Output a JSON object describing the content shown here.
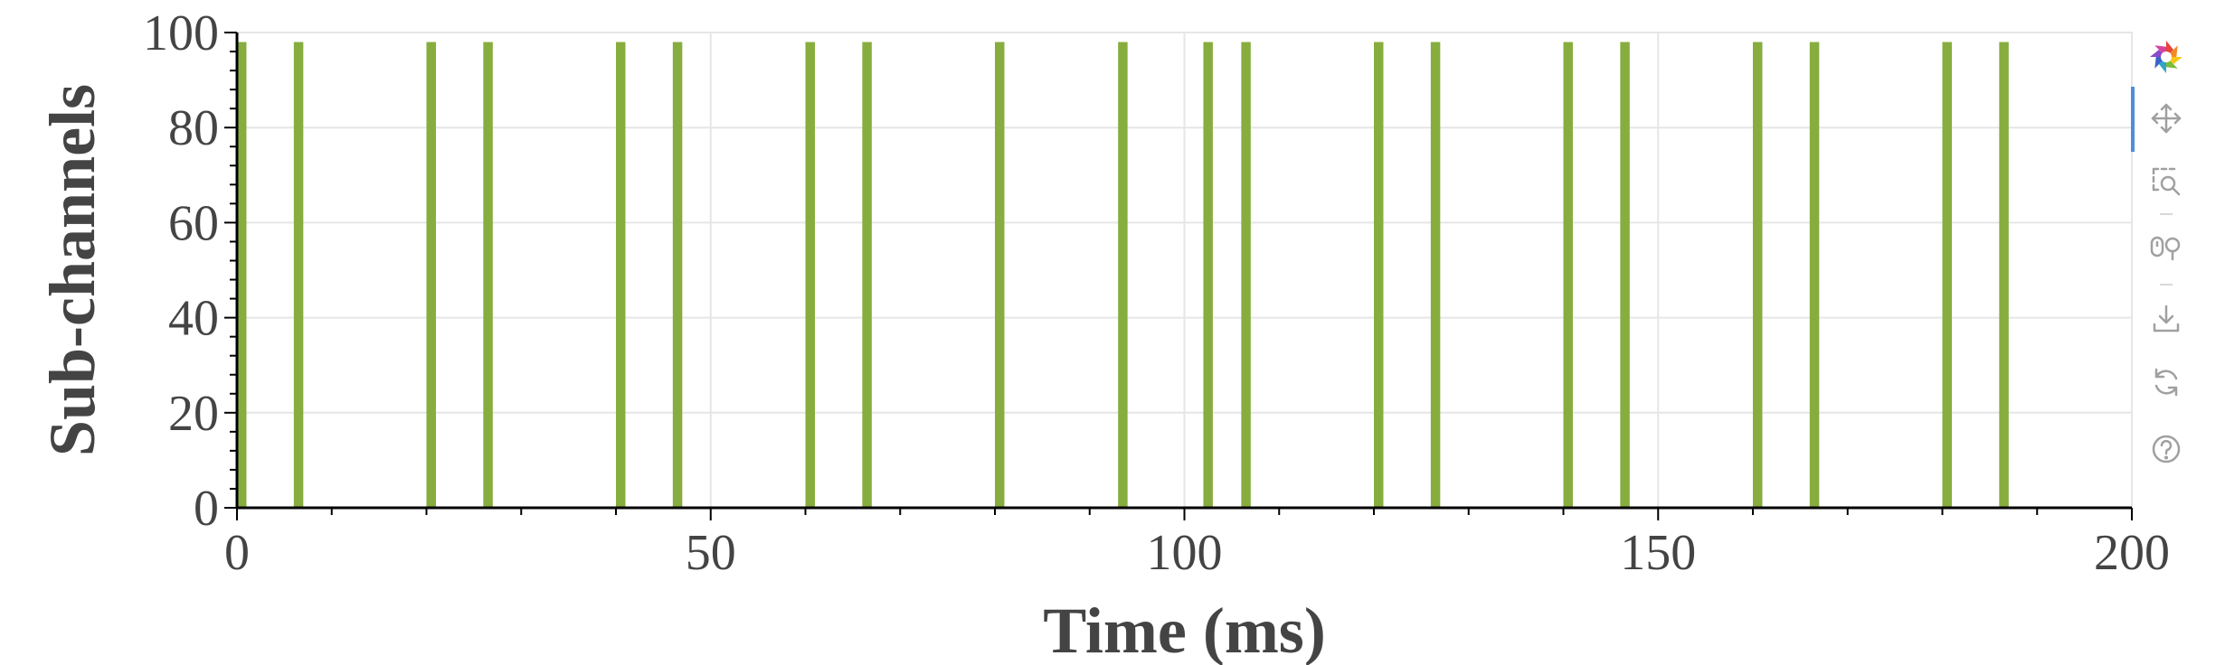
{
  "chart_data": {
    "type": "bar",
    "xlabel": "Time (ms)",
    "ylabel": "Sub-channels",
    "xlim": [
      0,
      200
    ],
    "ylim": [
      0,
      100
    ],
    "x_ticks": [
      0,
      50,
      100,
      150,
      200
    ],
    "y_ticks": [
      0,
      20,
      40,
      60,
      80,
      100
    ],
    "bar_height": 98,
    "bar_width_ms": 1,
    "bar_x": [
      0.5,
      6.5,
      20.5,
      26.5,
      40.5,
      46.5,
      60.5,
      66.5,
      80.5,
      93.5,
      102.5,
      106.5,
      120.5,
      126.5,
      140.5,
      146.5,
      160.5,
      166.5,
      180.5,
      186.5
    ],
    "bar_color": "#86ad3e",
    "grid": true
  },
  "toolbar": {
    "tools": [
      "bokeh-logo-icon",
      "pan-icon",
      "box-zoom-icon",
      "wheel-zoom-icon",
      "save-icon",
      "reset-icon",
      "help-icon"
    ]
  }
}
